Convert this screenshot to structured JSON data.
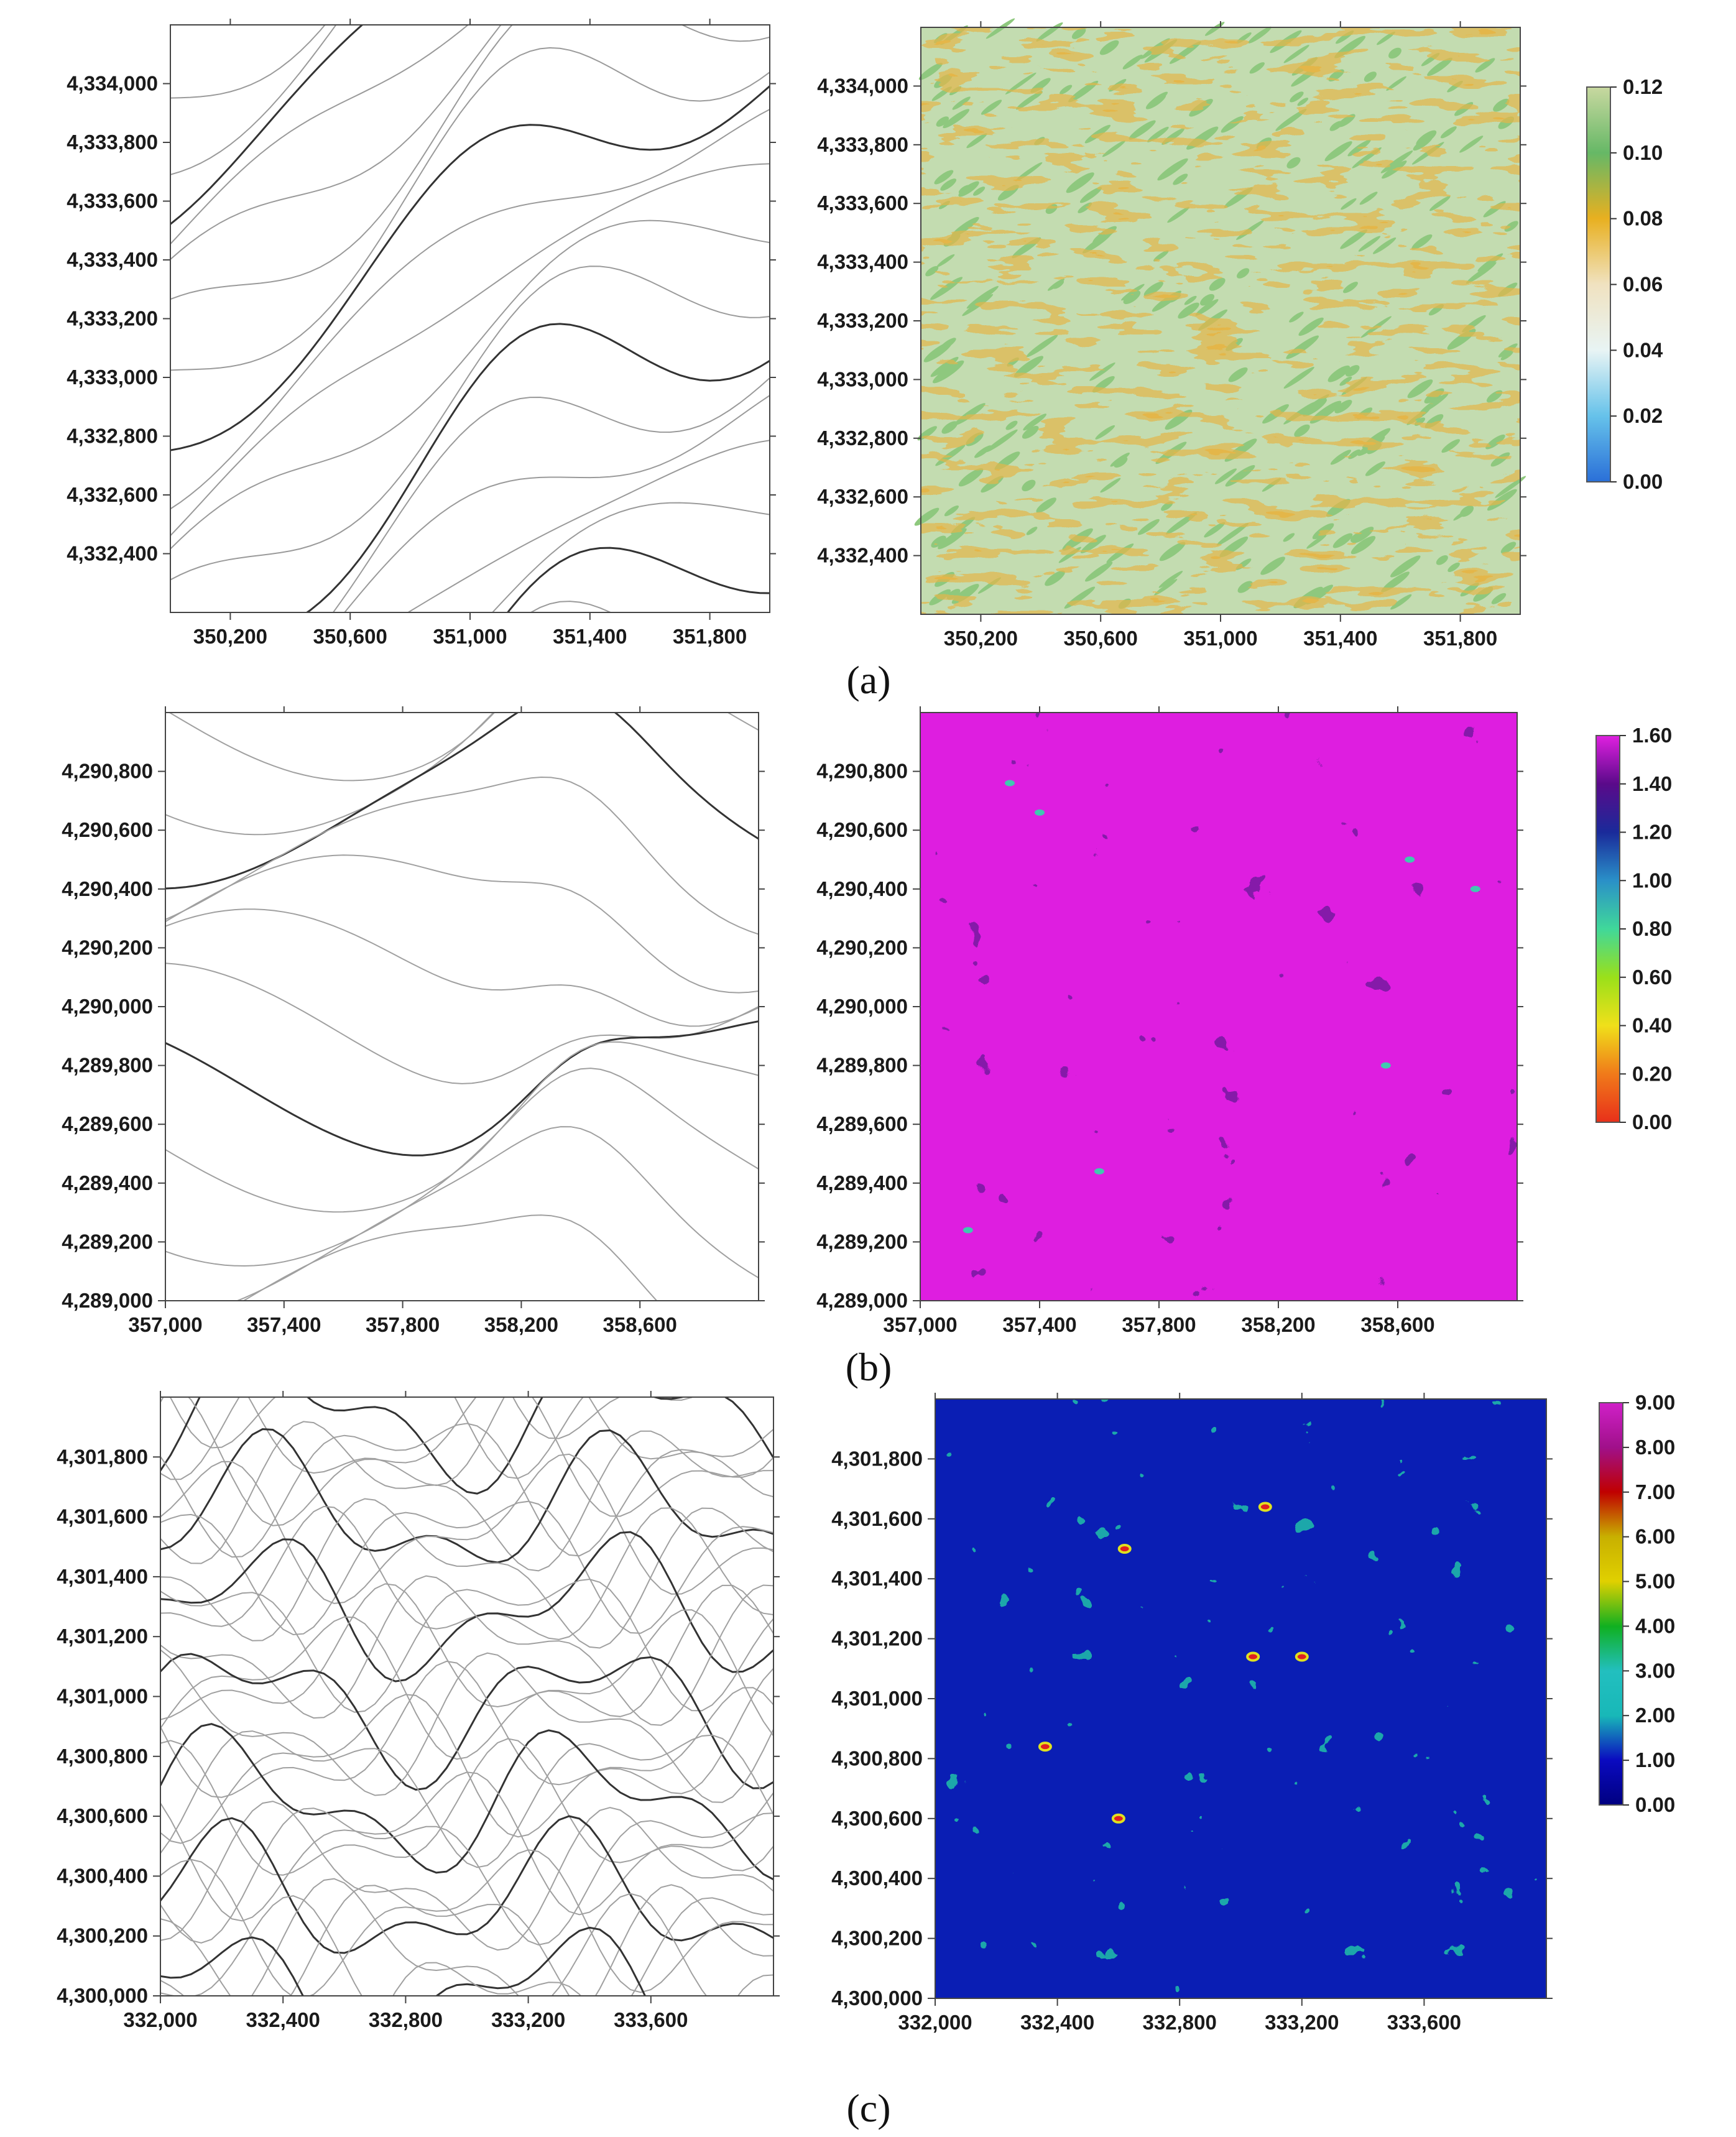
{
  "chart_data": [
    {
      "type": "contour",
      "panel": "a",
      "caption": "(a)",
      "xlim": [
        350000,
        352000
      ],
      "ylim": [
        4332200,
        4334200
      ],
      "x_ticks": [
        "350,200",
        "350,600",
        "351,000",
        "351,400",
        "351,800"
      ],
      "x_tick_values": [
        350200,
        350600,
        351000,
        351400,
        351800
      ],
      "y_ticks": [
        "4,334,000",
        "4,333,800",
        "4,333,600",
        "4,333,400",
        "4,333,200",
        "4,333,000",
        "4,332,800",
        "4,332,600",
        "4,332,400"
      ],
      "y_tick_values": [
        4334000,
        4333800,
        4333600,
        4333400,
        4333200,
        4333000,
        4332800,
        4332600,
        4332400
      ],
      "line_color": "#9a9a9a",
      "index_line_color": "#333333"
    },
    {
      "type": "heatmap",
      "panel": "a",
      "xlim": [
        350000,
        352000
      ],
      "ylim": [
        4332200,
        4334200
      ],
      "x_ticks": [
        "350,200",
        "350,600",
        "351,000",
        "351,400",
        "351,800"
      ],
      "x_tick_values": [
        350200,
        350600,
        351000,
        351400,
        351800
      ],
      "y_ticks": [
        "4,334,000",
        "4,333,800",
        "4,333,600",
        "4,333,400",
        "4,333,200",
        "4,333,000",
        "4,332,800",
        "4,332,600",
        "4,332,400"
      ],
      "y_tick_values": [
        4334000,
        4333800,
        4333600,
        4333400,
        4333200,
        4333000,
        4332800,
        4332600,
        4332400
      ],
      "colorbar": {
        "ticks": [
          "0.12",
          "0.10",
          "0.08",
          "0.06",
          "0.04",
          "0.02",
          "0.00"
        ],
        "min": 0,
        "max": 0.12,
        "colors": [
          "#2a6fd8",
          "#66c2ea",
          "#e8f4f4",
          "#f0e2c0",
          "#e8b020",
          "#66b866",
          "#c8d8a0"
        ]
      },
      "field_colors": [
        "#c3dcb0",
        "#8ec87e",
        "#e4b64a"
      ]
    },
    {
      "type": "contour",
      "panel": "b",
      "caption": "(b)",
      "xlim": [
        357000,
        359000
      ],
      "ylim": [
        4289000,
        4291000
      ],
      "x_ticks": [
        "357,000",
        "357,400",
        "357,800",
        "358,200",
        "358,600"
      ],
      "x_tick_values": [
        357000,
        357400,
        357800,
        358200,
        358600
      ],
      "y_ticks": [
        "4,290,800",
        "4,290,600",
        "4,290,400",
        "4,290,200",
        "4,290,000",
        "4,289,800",
        "4,289,600",
        "4,289,400",
        "4,289,200",
        "4,289,000"
      ],
      "y_tick_values": [
        4290800,
        4290600,
        4290400,
        4290200,
        4290000,
        4289800,
        4289600,
        4289400,
        4289200,
        4289000
      ],
      "line_color": "#a0a0a0",
      "index_line_color": "#333333"
    },
    {
      "type": "heatmap",
      "panel": "b",
      "xlim": [
        357000,
        359000
      ],
      "ylim": [
        4289000,
        4291000
      ],
      "x_ticks": [
        "357,000",
        "357,400",
        "357,800",
        "358,200",
        "358,600"
      ],
      "x_tick_values": [
        357000,
        357400,
        357800,
        358200,
        358600
      ],
      "y_ticks": [
        "4,290,800",
        "4,290,600",
        "4,290,400",
        "4,290,200",
        "4,290,000",
        "4,289,800",
        "4,289,600",
        "4,289,400",
        "4,289,200",
        "4,289,000"
      ],
      "y_tick_values": [
        4290800,
        4290600,
        4290400,
        4290200,
        4290000,
        4289800,
        4289600,
        4289400,
        4289200,
        4289000
      ],
      "colorbar": {
        "ticks": [
          "1.60",
          "1.40",
          "1.20",
          "1.00",
          "0.80",
          "0.60",
          "0.40",
          "0.20",
          "0.00"
        ],
        "min": 0,
        "max": 1.6,
        "colors": [
          "#e8301a",
          "#f07a1a",
          "#f0e01a",
          "#9ae01a",
          "#40d89a",
          "#2a90c8",
          "#1a2a9a",
          "#5a0a8a",
          "#e020e0"
        ]
      },
      "field_colors": [
        "#de1ee0",
        "#b810c8",
        "#2a1070"
      ]
    },
    {
      "type": "contour",
      "panel": "c",
      "caption": "(c)",
      "xlim": [
        332000,
        334000
      ],
      "ylim": [
        4300000,
        4302000
      ],
      "x_ticks": [
        "332,000",
        "332,400",
        "332,800",
        "333,200",
        "333,600"
      ],
      "x_tick_values": [
        332000,
        332400,
        332800,
        333200,
        333600
      ],
      "y_ticks": [
        "4,301,800",
        "4,301,600",
        "4,301,400",
        "4,301,200",
        "4,301,000",
        "4,300,800",
        "4,300,600",
        "4,300,400",
        "4,300,200",
        "4,300,000"
      ],
      "y_tick_values": [
        4301800,
        4301600,
        4301400,
        4301200,
        4301000,
        4300800,
        4300600,
        4300400,
        4300200,
        4300000
      ],
      "line_color": "#a0a0a0",
      "index_line_color": "#333333"
    },
    {
      "type": "heatmap",
      "panel": "c",
      "xlim": [
        332000,
        334000
      ],
      "ylim": [
        4300000,
        4302000
      ],
      "x_ticks": [
        "332,000",
        "332,400",
        "332,800",
        "333,200",
        "333,600"
      ],
      "x_tick_values": [
        332000,
        332400,
        332800,
        333200,
        333600
      ],
      "y_ticks": [
        "4,301,800",
        "4,301,600",
        "4,301,400",
        "4,301,200",
        "4,301,000",
        "4,300,800",
        "4,300,600",
        "4,300,400",
        "4,300,200",
        "4,300,000"
      ],
      "y_tick_values": [
        4301800,
        4301600,
        4301400,
        4301200,
        4301000,
        4300800,
        4300600,
        4300400,
        4300200,
        4300000
      ],
      "colorbar": {
        "ticks": [
          "9.00",
          "8.00",
          "7.00",
          "6.00",
          "5.00",
          "4.00",
          "3.00",
          "2.00",
          "1.00",
          "0.00"
        ],
        "min": 0,
        "max": 9,
        "colors": [
          "#000080",
          "#0a0ac0",
          "#18b8b8",
          "#22bfbf",
          "#10b020",
          "#e0d000",
          "#c8b000",
          "#c00000",
          "#a0108a",
          "#d020c8"
        ]
      },
      "field_colors": [
        "#0a1eb4",
        "#22c0a8",
        "#e0e020"
      ]
    }
  ]
}
